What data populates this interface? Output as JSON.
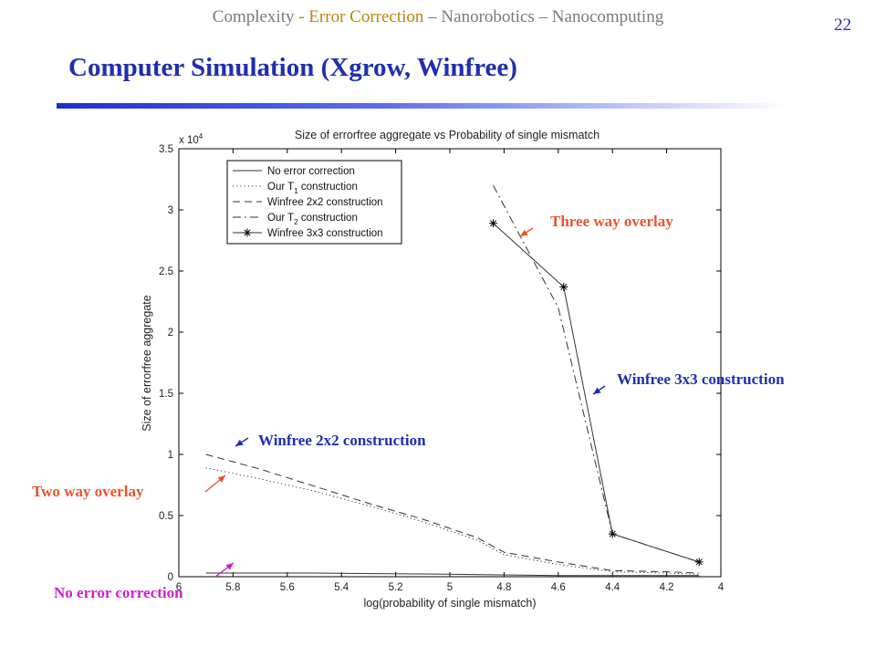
{
  "header": {
    "breadcrumb": {
      "part1": "Complexity ",
      "active": "- Error Correction",
      "part2": " – Nanorobotics – Nanocomputing"
    },
    "page_number": "22",
    "title": "Computer Simulation (Xgrow, Winfree)"
  },
  "chart_data": {
    "type": "line",
    "title": "Size of errorfree aggregate vs Probability of single mismatch",
    "xlabel": "log(probability of single mismatch)",
    "ylabel": "Size of errorfree aggregate",
    "y_multiplier": "x 10",
    "y_multiplier_exp": "4",
    "xlim": [
      6,
      4
    ],
    "ylim": [
      0,
      3.5
    ],
    "x_reversed": true,
    "x_ticks": [
      6,
      5.8,
      5.6,
      5.4,
      5.2,
      5,
      4.8,
      4.6,
      4.4,
      4.2,
      4
    ],
    "x_tick_labels": [
      "6",
      "5.8",
      "5.6",
      "5.4",
      "5.2",
      "5",
      "4.8",
      "4.6",
      "4.4",
      "4.2",
      "4"
    ],
    "y_ticks": [
      0,
      0.5,
      1,
      1.5,
      2,
      2.5,
      3,
      3.5
    ],
    "y_tick_labels": [
      "0",
      "0.5",
      "1",
      "1.5",
      "2",
      "2.5",
      "3",
      "3.5"
    ],
    "grid": false,
    "legend_position": "top-left",
    "legend_items": [
      {
        "text": "No error correction",
        "sub": "",
        "after": ""
      },
      {
        "text": "Our T",
        "sub": "1",
        "after": " construction"
      },
      {
        "text": "Winfree 2x2 construction",
        "sub": "",
        "after": ""
      },
      {
        "text": "Our T",
        "sub": "2",
        "after": " construction"
      },
      {
        "text": "Winfree 3x3 construction",
        "sub": "",
        "after": ""
      }
    ],
    "series": [
      {
        "style": "solid",
        "x": [
          5.9,
          5.5,
          5.0,
          4.6,
          4.4,
          4.2,
          4.08
        ],
        "y": [
          0.03,
          0.03,
          0.02,
          0.01,
          0.01,
          0.01,
          0.01
        ]
      },
      {
        "style": "dotted",
        "x": [
          5.9,
          5.7,
          5.5,
          5.3,
          5.1,
          4.9,
          4.8,
          4.6,
          4.4,
          4.2,
          4.08
        ],
        "y": [
          0.89,
          0.8,
          0.7,
          0.58,
          0.45,
          0.3,
          0.18,
          0.1,
          0.04,
          0.03,
          0.02
        ]
      },
      {
        "style": "dashed",
        "x": [
          5.9,
          5.7,
          5.5,
          5.3,
          5.1,
          4.9,
          4.8,
          4.6,
          4.4,
          4.2,
          4.08
        ],
        "y": [
          1.0,
          0.88,
          0.74,
          0.6,
          0.47,
          0.32,
          0.2,
          0.12,
          0.05,
          0.04,
          0.03
        ]
      },
      {
        "style": "dashdot",
        "x": [
          4.84,
          4.6,
          4.4,
          4.08
        ],
        "y": [
          3.2,
          2.2,
          0.35,
          0.12
        ]
      },
      {
        "style": "solid-star",
        "x": [
          4.84,
          4.58,
          4.4,
          4.08
        ],
        "y": [
          2.89,
          2.37,
          0.35,
          0.12
        ]
      }
    ]
  },
  "annotations": {
    "three_way": "Three way overlay",
    "winfree3x3": "Winfree 3x3 construction",
    "winfree2x2": "Winfree 2x2 construction",
    "two_way": "Two way overlay",
    "no_error": "No error correction"
  },
  "colors": {
    "blue": "#1f2fb0",
    "orange": "#e8542a",
    "magenta": "#cc22cc",
    "gold": "#b8860b"
  }
}
